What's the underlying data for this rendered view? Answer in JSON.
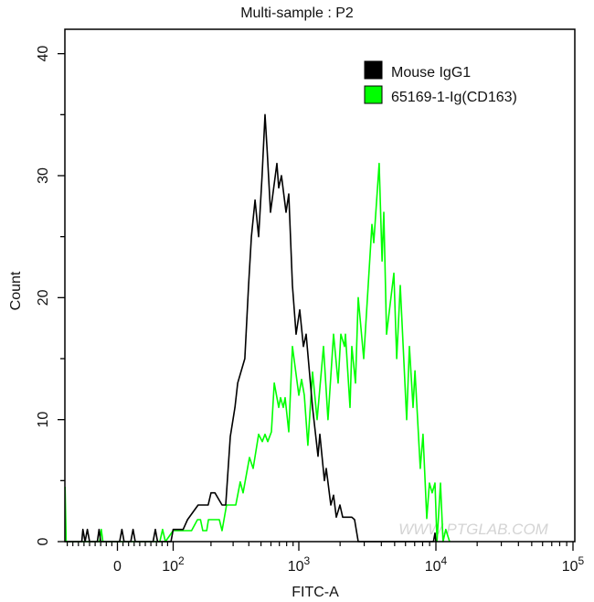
{
  "chart_data": {
    "type": "line",
    "title": "Multi-sample : P2",
    "xlabel": "FITC-A",
    "ylabel": "Count",
    "x_scale": "biexponential",
    "ylim": [
      0,
      42
    ],
    "y_ticks": [
      0,
      10,
      20,
      30,
      40
    ],
    "x_ticks": [
      {
        "value": 0,
        "label": "0",
        "exp": ""
      },
      {
        "value": 100,
        "label": "10",
        "exp": "2"
      },
      {
        "value": 1000,
        "label": "10",
        "exp": "3"
      },
      {
        "value": 10000,
        "label": "10",
        "exp": "4"
      },
      {
        "value": 100000,
        "label": "10",
        "exp": "5"
      }
    ],
    "grid": false,
    "legend_position": "top-right",
    "watermark": "WWW.PTGLAB.COM",
    "series": [
      {
        "name": "Mouse IgG1",
        "color": "#000000",
        "points": [
          [
            -94,
            0
          ],
          [
            -64,
            0
          ],
          [
            -62,
            1
          ],
          [
            -58,
            0
          ],
          [
            -54,
            1
          ],
          [
            -50,
            0
          ],
          [
            -36,
            0
          ],
          [
            -33,
            1
          ],
          [
            -30,
            0
          ],
          [
            4,
            0
          ],
          [
            8,
            1
          ],
          [
            12,
            0
          ],
          [
            24,
            0
          ],
          [
            28,
            1
          ],
          [
            32,
            0
          ],
          [
            64,
            0
          ],
          [
            68,
            1
          ],
          [
            72,
            0
          ],
          [
            96,
            0
          ],
          [
            100,
            1
          ],
          [
            120,
            1
          ],
          [
            130,
            1.8
          ],
          [
            158,
            3
          ],
          [
            190,
            3
          ],
          [
            200,
            4
          ],
          [
            215,
            4
          ],
          [
            245,
            3
          ],
          [
            262,
            3
          ],
          [
            285,
            8.6
          ],
          [
            310,
            11
          ],
          [
            326,
            13
          ],
          [
            372,
            15
          ],
          [
            398,
            21
          ],
          [
            419,
            25
          ],
          [
            448,
            28
          ],
          [
            479,
            25
          ],
          [
            510,
            30
          ],
          [
            538,
            35
          ],
          [
            560,
            32
          ],
          [
            595,
            27
          ],
          [
            669,
            31
          ],
          [
            692,
            29
          ],
          [
            728,
            30
          ],
          [
            791,
            27
          ],
          [
            832,
            28.5
          ],
          [
            889,
            21
          ],
          [
            951,
            17
          ],
          [
            1015,
            19
          ],
          [
            1080,
            16
          ],
          [
            1130,
            17
          ],
          [
            1259,
            11
          ],
          [
            1380,
            7
          ],
          [
            1423,
            8.8
          ],
          [
            1537,
            5
          ],
          [
            1585,
            6
          ],
          [
            1711,
            3
          ],
          [
            1792,
            3.8
          ],
          [
            1876,
            2
          ],
          [
            1995,
            3
          ],
          [
            2089,
            2
          ],
          [
            2436,
            2
          ],
          [
            2551,
            1.8
          ],
          [
            2712,
            0
          ],
          [
            9600,
            0
          ],
          [
            9847,
            0.7
          ],
          [
            10000,
            0
          ]
        ]
      },
      {
        "name": "65169-1-Ig(CD163)",
        "color": "#00ff00",
        "points": [
          [
            -94,
            4.5
          ],
          [
            -92,
            0
          ],
          [
            -32,
            0
          ],
          [
            -29,
            1
          ],
          [
            -26,
            0
          ],
          [
            76,
            0
          ],
          [
            81,
            1
          ],
          [
            86,
            0
          ],
          [
            100,
            0.9
          ],
          [
            110,
            0.9
          ],
          [
            140,
            0.9
          ],
          [
            156,
            1.8
          ],
          [
            165,
            1.8
          ],
          [
            172,
            0.9
          ],
          [
            185,
            0.9
          ],
          [
            191,
            1.8
          ],
          [
            233,
            1.8
          ],
          [
            245,
            0.9
          ],
          [
            266,
            3
          ],
          [
            315,
            3
          ],
          [
            342,
            4.9
          ],
          [
            360,
            4
          ],
          [
            405,
            6.9
          ],
          [
            433,
            6
          ],
          [
            479,
            8.8
          ],
          [
            512,
            8.2
          ],
          [
            538,
            8.8
          ],
          [
            566,
            8.2
          ],
          [
            605,
            9
          ],
          [
            637,
            13
          ],
          [
            692,
            11
          ],
          [
            715,
            11.8
          ],
          [
            752,
            11
          ],
          [
            778,
            11.8
          ],
          [
            832,
            9
          ],
          [
            889,
            16
          ],
          [
            1000,
            12
          ],
          [
            1047,
            13.3
          ],
          [
            1096,
            12
          ],
          [
            1164,
            7.9
          ],
          [
            1259,
            13.9
          ],
          [
            1359,
            10
          ],
          [
            1514,
            16
          ],
          [
            1633,
            10
          ],
          [
            1792,
            17
          ],
          [
            1936,
            13
          ],
          [
            2027,
            17
          ],
          [
            2154,
            16
          ],
          [
            2188,
            17
          ],
          [
            2362,
            11
          ],
          [
            2436,
            16
          ],
          [
            2592,
            13
          ],
          [
            2712,
            20
          ],
          [
            2974,
            15
          ],
          [
            3415,
            26
          ],
          [
            3522,
            24.5
          ],
          [
            3857,
            31
          ],
          [
            4046,
            23
          ],
          [
            4169,
            27
          ],
          [
            4365,
            17
          ],
          [
            4932,
            22
          ],
          [
            5176,
            15
          ],
          [
            5495,
            21
          ],
          [
            6119,
            10
          ],
          [
            6411,
            16
          ],
          [
            6813,
            11
          ],
          [
            7031,
            14
          ],
          [
            7696,
            6
          ],
          [
            8054,
            8.8
          ],
          [
            8577,
            1.9
          ],
          [
            8974,
            4.8
          ],
          [
            9397,
            4
          ],
          [
            9847,
            4.8
          ],
          [
            10186,
            0
          ],
          [
            10794,
            4.8
          ],
          [
            11271,
            0
          ],
          [
            11802,
            1
          ],
          [
            12589,
            0
          ]
        ]
      }
    ]
  }
}
